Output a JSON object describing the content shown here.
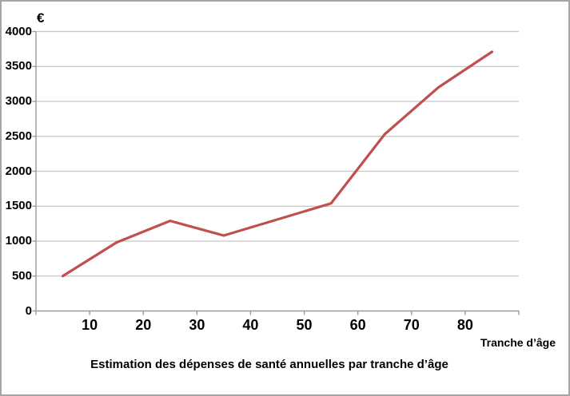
{
  "chart": {
    "y_axis_unit_label": "€",
    "x_axis_label": "Tranche d’âge",
    "title": "Estimation des dépenses de santé annuelles par tranche d’âge"
  },
  "chart_data": {
    "type": "line",
    "title": "Estimation des dépenses de santé annuelles par tranche d’âge",
    "xlabel": "Tranche d’âge",
    "ylabel": "€",
    "x": [
      5,
      15,
      25,
      35,
      45,
      55,
      65,
      75,
      85
    ],
    "values": [
      500,
      980,
      1290,
      1080,
      1310,
      1540,
      2530,
      3200,
      3710
    ],
    "x_tick_labels": [
      "10",
      "20",
      "30",
      "40",
      "50",
      "60",
      "70",
      "80"
    ],
    "y_tick_labels": [
      "0",
      "500",
      "1000",
      "1500",
      "2000",
      "2500",
      "3000",
      "3500",
      "4000"
    ],
    "ylim": [
      0,
      4000
    ],
    "grid": "horizontal",
    "legend": "none",
    "line_color": "#c0504d"
  },
  "colors": {
    "line": "#c0504d",
    "gridline": "#c6c6c6",
    "axis": "#9a9a9a",
    "border": "#a6a6a6",
    "background": "#ffffff",
    "text": "#000000"
  }
}
